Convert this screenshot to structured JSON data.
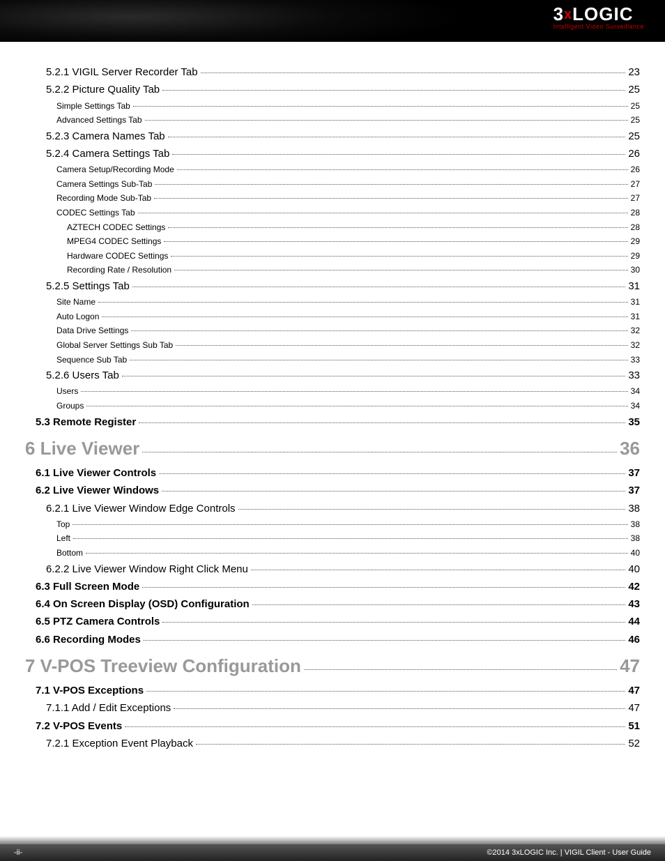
{
  "logo": {
    "main_pre": "3",
    "main_x": "x",
    "main_post": "LOGIC",
    "sub": "Intelligent Video Surveillance"
  },
  "footer": {
    "left": "-ii-",
    "right": "©2014 3xLOGIC Inc.  |  VIGIL Client - User Guide"
  },
  "colors": {
    "h1": "#999",
    "dot": "#555",
    "brand_red": "#c00"
  },
  "toc": [
    {
      "level": "h3",
      "label": "5.2.1 VIGIL Server Recorder Tab",
      "page": "23"
    },
    {
      "level": "h3",
      "label": "5.2.2 Picture Quality Tab",
      "page": "25"
    },
    {
      "level": "h4",
      "label": "Simple Settings Tab",
      "page": "25"
    },
    {
      "level": "h4",
      "label": "Advanced Settings Tab",
      "page": "25"
    },
    {
      "level": "h3",
      "label": "5.2.3 Camera Names Tab",
      "page": "25"
    },
    {
      "level": "h3",
      "label": "5.2.4 Camera Settings Tab",
      "page": "26"
    },
    {
      "level": "h4",
      "label": "Camera Setup/Recording Mode",
      "page": "26"
    },
    {
      "level": "h4",
      "label": "Camera Settings Sub-Tab",
      "page": "27"
    },
    {
      "level": "h4",
      "label": "Recording Mode Sub-Tab",
      "page": "27"
    },
    {
      "level": "h4",
      "label": "CODEC Settings Tab",
      "page": "28"
    },
    {
      "level": "h5",
      "label": "AZTECH CODEC Settings",
      "page": "28"
    },
    {
      "level": "h5",
      "label": "MPEG4 CODEC Settings",
      "page": "29"
    },
    {
      "level": "h5",
      "label": "Hardware CODEC Settings",
      "page": "29"
    },
    {
      "level": "h5",
      "label": "Recording Rate / Resolution",
      "page": "30"
    },
    {
      "level": "h3",
      "label": "5.2.5 Settings Tab",
      "page": "31"
    },
    {
      "level": "h4",
      "label": "Site Name",
      "page": "31"
    },
    {
      "level": "h4",
      "label": "Auto Logon",
      "page": "31"
    },
    {
      "level": "h4",
      "label": "Data Drive Settings",
      "page": "32"
    },
    {
      "level": "h4",
      "label": "Global Server Settings Sub Tab",
      "page": "32"
    },
    {
      "level": "h4",
      "label": "Sequence Sub Tab",
      "page": "33"
    },
    {
      "level": "h3",
      "label": "5.2.6 Users Tab",
      "page": "33"
    },
    {
      "level": "h4",
      "label": "Users",
      "page": "34"
    },
    {
      "level": "h4",
      "label": "Groups",
      "page": "34"
    },
    {
      "level": "h2",
      "label": "5.3 Remote Register",
      "page": "35"
    },
    {
      "level": "h1",
      "label": "6 Live Viewer",
      "page": "36"
    },
    {
      "level": "h2",
      "label": "6.1 Live Viewer Controls",
      "page": "37"
    },
    {
      "level": "h2",
      "label": "6.2 Live Viewer Windows",
      "page": "37"
    },
    {
      "level": "h3",
      "label": "6.2.1 Live Viewer Window Edge Controls",
      "page": "38"
    },
    {
      "level": "h4",
      "label": "Top",
      "page": "38"
    },
    {
      "level": "h4",
      "label": "Left",
      "page": "38"
    },
    {
      "level": "h4",
      "label": "Bottom",
      "page": "40"
    },
    {
      "level": "h3",
      "label": "6.2.2 Live Viewer Window Right Click Menu",
      "page": "40"
    },
    {
      "level": "h2",
      "label": "6.3 Full Screen Mode",
      "page": "42"
    },
    {
      "level": "h2",
      "label": "6.4 On Screen Display (OSD) Configuration",
      "page": "43"
    },
    {
      "level": "h2",
      "label": "6.5 PTZ Camera Controls",
      "page": "44"
    },
    {
      "level": "h2",
      "label": "6.6 Recording Modes",
      "page": "46"
    },
    {
      "level": "h1",
      "label": "7 V-POS Treeview Configuration",
      "page": "47"
    },
    {
      "level": "h2",
      "label": "7.1 V-POS Exceptions",
      "page": "47"
    },
    {
      "level": "h3",
      "label": "7.1.1 Add / Edit Exceptions",
      "page": "47"
    },
    {
      "level": "h2",
      "label": "7.2 V-POS Events",
      "page": "51"
    },
    {
      "level": "h3",
      "label": "7.2.1 Exception Event Playback",
      "page": "52"
    }
  ]
}
